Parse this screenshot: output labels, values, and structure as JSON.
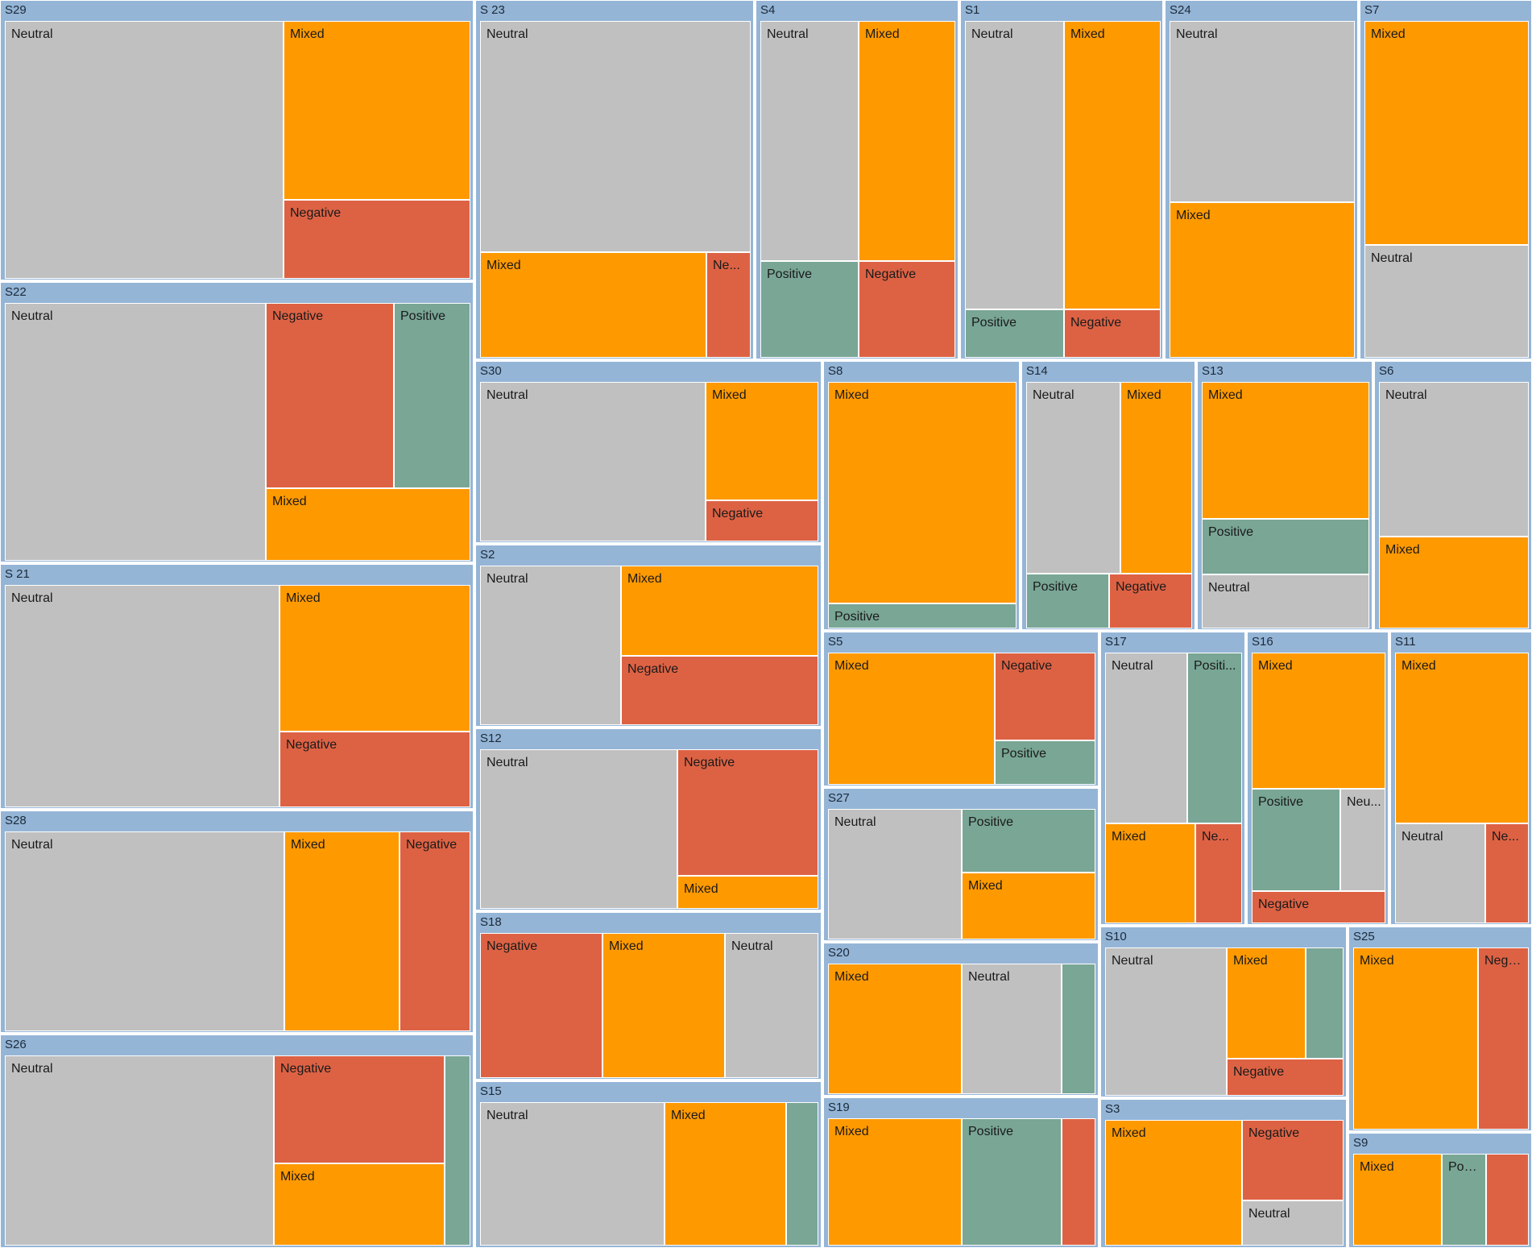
{
  "chart_data": {
    "type": "treemap",
    "colors": {
      "Neutral": "#c0c0c0",
      "Mixed": "#ff9900",
      "Negative": "#dd6244",
      "Positive": "#79a695",
      "header": "#95b5d6"
    },
    "groups": [
      {
        "name": "S29",
        "leaves": [
          {
            "label": "Neutral",
            "cat": "Neutral"
          },
          {
            "label": "Mixed",
            "cat": "Mixed"
          },
          {
            "label": "Negative",
            "cat": "Negative"
          }
        ]
      },
      {
        "name": "S22",
        "leaves": [
          {
            "label": "Neutral",
            "cat": "Neutral"
          },
          {
            "label": "Negative",
            "cat": "Negative"
          },
          {
            "label": "Positive",
            "cat": "Positive"
          },
          {
            "label": "Mixed",
            "cat": "Mixed"
          }
        ]
      },
      {
        "name": "S 21",
        "leaves": [
          {
            "label": "Neutral",
            "cat": "Neutral"
          },
          {
            "label": "Mixed",
            "cat": "Mixed"
          },
          {
            "label": "Negative",
            "cat": "Negative"
          }
        ]
      },
      {
        "name": "S28",
        "leaves": [
          {
            "label": "Neutral",
            "cat": "Neutral"
          },
          {
            "label": "Mixed",
            "cat": "Mixed"
          },
          {
            "label": "Negative",
            "cat": "Negative"
          }
        ]
      },
      {
        "name": "S26",
        "leaves": [
          {
            "label": "Neutral",
            "cat": "Neutral"
          },
          {
            "label": "Negative",
            "cat": "Negative"
          },
          {
            "label": "Mixed",
            "cat": "Mixed"
          },
          {
            "label": "",
            "cat": "Positive"
          }
        ]
      },
      {
        "name": "S 23",
        "leaves": [
          {
            "label": "Neutral",
            "cat": "Neutral"
          },
          {
            "label": "Mixed",
            "cat": "Mixed"
          },
          {
            "label": "Ne...",
            "cat": "Negative"
          }
        ]
      },
      {
        "name": "S4",
        "leaves": [
          {
            "label": "Neutral",
            "cat": "Neutral"
          },
          {
            "label": "Mixed",
            "cat": "Mixed"
          },
          {
            "label": "Positive",
            "cat": "Positive"
          },
          {
            "label": "Negative",
            "cat": "Negative"
          }
        ]
      },
      {
        "name": "S1",
        "leaves": [
          {
            "label": "Neutral",
            "cat": "Neutral"
          },
          {
            "label": "Mixed",
            "cat": "Mixed"
          },
          {
            "label": "Positive",
            "cat": "Positive"
          },
          {
            "label": "Negative",
            "cat": "Negative"
          }
        ]
      },
      {
        "name": "S24",
        "leaves": [
          {
            "label": "Neutral",
            "cat": "Neutral"
          },
          {
            "label": "Mixed",
            "cat": "Mixed"
          }
        ]
      },
      {
        "name": "S7",
        "leaves": [
          {
            "label": "Mixed",
            "cat": "Mixed"
          },
          {
            "label": "Neutral",
            "cat": "Neutral"
          }
        ]
      },
      {
        "name": "S30",
        "leaves": [
          {
            "label": "Neutral",
            "cat": "Neutral"
          },
          {
            "label": "Mixed",
            "cat": "Mixed"
          },
          {
            "label": "Negative",
            "cat": "Negative"
          }
        ]
      },
      {
        "name": "S2",
        "leaves": [
          {
            "label": "Neutral",
            "cat": "Neutral"
          },
          {
            "label": "Mixed",
            "cat": "Mixed"
          },
          {
            "label": "Negative",
            "cat": "Negative"
          }
        ]
      },
      {
        "name": "S12",
        "leaves": [
          {
            "label": "Neutral",
            "cat": "Neutral"
          },
          {
            "label": "Negative",
            "cat": "Negative"
          },
          {
            "label": "Mixed",
            "cat": "Mixed"
          }
        ]
      },
      {
        "name": "S18",
        "leaves": [
          {
            "label": "Negative",
            "cat": "Negative"
          },
          {
            "label": "Mixed",
            "cat": "Mixed"
          },
          {
            "label": "Neutral",
            "cat": "Neutral"
          }
        ]
      },
      {
        "name": "S15",
        "leaves": [
          {
            "label": "Neutral",
            "cat": "Neutral"
          },
          {
            "label": "Mixed",
            "cat": "Mixed"
          },
          {
            "label": "",
            "cat": "Positive"
          }
        ]
      },
      {
        "name": "S8",
        "leaves": [
          {
            "label": "Mixed",
            "cat": "Mixed"
          },
          {
            "label": "Positive",
            "cat": "Positive"
          }
        ]
      },
      {
        "name": "S14",
        "leaves": [
          {
            "label": "Neutral",
            "cat": "Neutral"
          },
          {
            "label": "Mixed",
            "cat": "Mixed"
          },
          {
            "label": "Positive",
            "cat": "Positive"
          },
          {
            "label": "Negative",
            "cat": "Negative"
          }
        ]
      },
      {
        "name": "S13",
        "leaves": [
          {
            "label": "Mixed",
            "cat": "Mixed"
          },
          {
            "label": "Positive",
            "cat": "Positive"
          },
          {
            "label": "Neutral",
            "cat": "Neutral"
          }
        ]
      },
      {
        "name": "S6",
        "leaves": [
          {
            "label": "Neutral",
            "cat": "Neutral"
          },
          {
            "label": "Mixed",
            "cat": "Mixed"
          }
        ]
      },
      {
        "name": "S5",
        "leaves": [
          {
            "label": "Mixed",
            "cat": "Mixed"
          },
          {
            "label": "Negative",
            "cat": "Negative"
          },
          {
            "label": "Positive",
            "cat": "Positive"
          }
        ]
      },
      {
        "name": "S27",
        "leaves": [
          {
            "label": "Neutral",
            "cat": "Neutral"
          },
          {
            "label": "Positive",
            "cat": "Positive"
          },
          {
            "label": "Mixed",
            "cat": "Mixed"
          }
        ]
      },
      {
        "name": "S20",
        "leaves": [
          {
            "label": "Mixed",
            "cat": "Mixed"
          },
          {
            "label": "Neutral",
            "cat": "Neutral"
          },
          {
            "label": "",
            "cat": "Positive"
          }
        ]
      },
      {
        "name": "S19",
        "leaves": [
          {
            "label": "Mixed",
            "cat": "Mixed"
          },
          {
            "label": "Positive",
            "cat": "Positive"
          },
          {
            "label": "",
            "cat": "Negative"
          }
        ]
      },
      {
        "name": "S17",
        "leaves": [
          {
            "label": "Neutral",
            "cat": "Neutral"
          },
          {
            "label": "Positi...",
            "cat": "Positive"
          },
          {
            "label": "Mixed",
            "cat": "Mixed"
          },
          {
            "label": "Ne...",
            "cat": "Negative"
          }
        ]
      },
      {
        "name": "S16",
        "leaves": [
          {
            "label": "Mixed",
            "cat": "Mixed"
          },
          {
            "label": "Positive",
            "cat": "Positive"
          },
          {
            "label": "Neu...",
            "cat": "Neutral"
          },
          {
            "label": "Negative",
            "cat": "Negative"
          }
        ]
      },
      {
        "name": "S11",
        "leaves": [
          {
            "label": "Mixed",
            "cat": "Mixed"
          },
          {
            "label": "Neutral",
            "cat": "Neutral"
          },
          {
            "label": "Ne...",
            "cat": "Negative"
          }
        ]
      },
      {
        "name": "S10",
        "leaves": [
          {
            "label": "Neutral",
            "cat": "Neutral"
          },
          {
            "label": "Mixed",
            "cat": "Mixed"
          },
          {
            "label": "",
            "cat": "Positive"
          },
          {
            "label": "Negative",
            "cat": "Negative"
          }
        ]
      },
      {
        "name": "S3",
        "leaves": [
          {
            "label": "Mixed",
            "cat": "Mixed"
          },
          {
            "label": "Negative",
            "cat": "Negative"
          },
          {
            "label": "Neutral",
            "cat": "Neutral"
          }
        ]
      },
      {
        "name": "S25",
        "leaves": [
          {
            "label": "Mixed",
            "cat": "Mixed"
          },
          {
            "label": "Nega...",
            "cat": "Negative"
          }
        ]
      },
      {
        "name": "S9",
        "leaves": [
          {
            "label": "Mixed",
            "cat": "Mixed"
          },
          {
            "label": "Posi...",
            "cat": "Positive"
          },
          {
            "label": "",
            "cat": "Negative"
          }
        ]
      }
    ]
  }
}
